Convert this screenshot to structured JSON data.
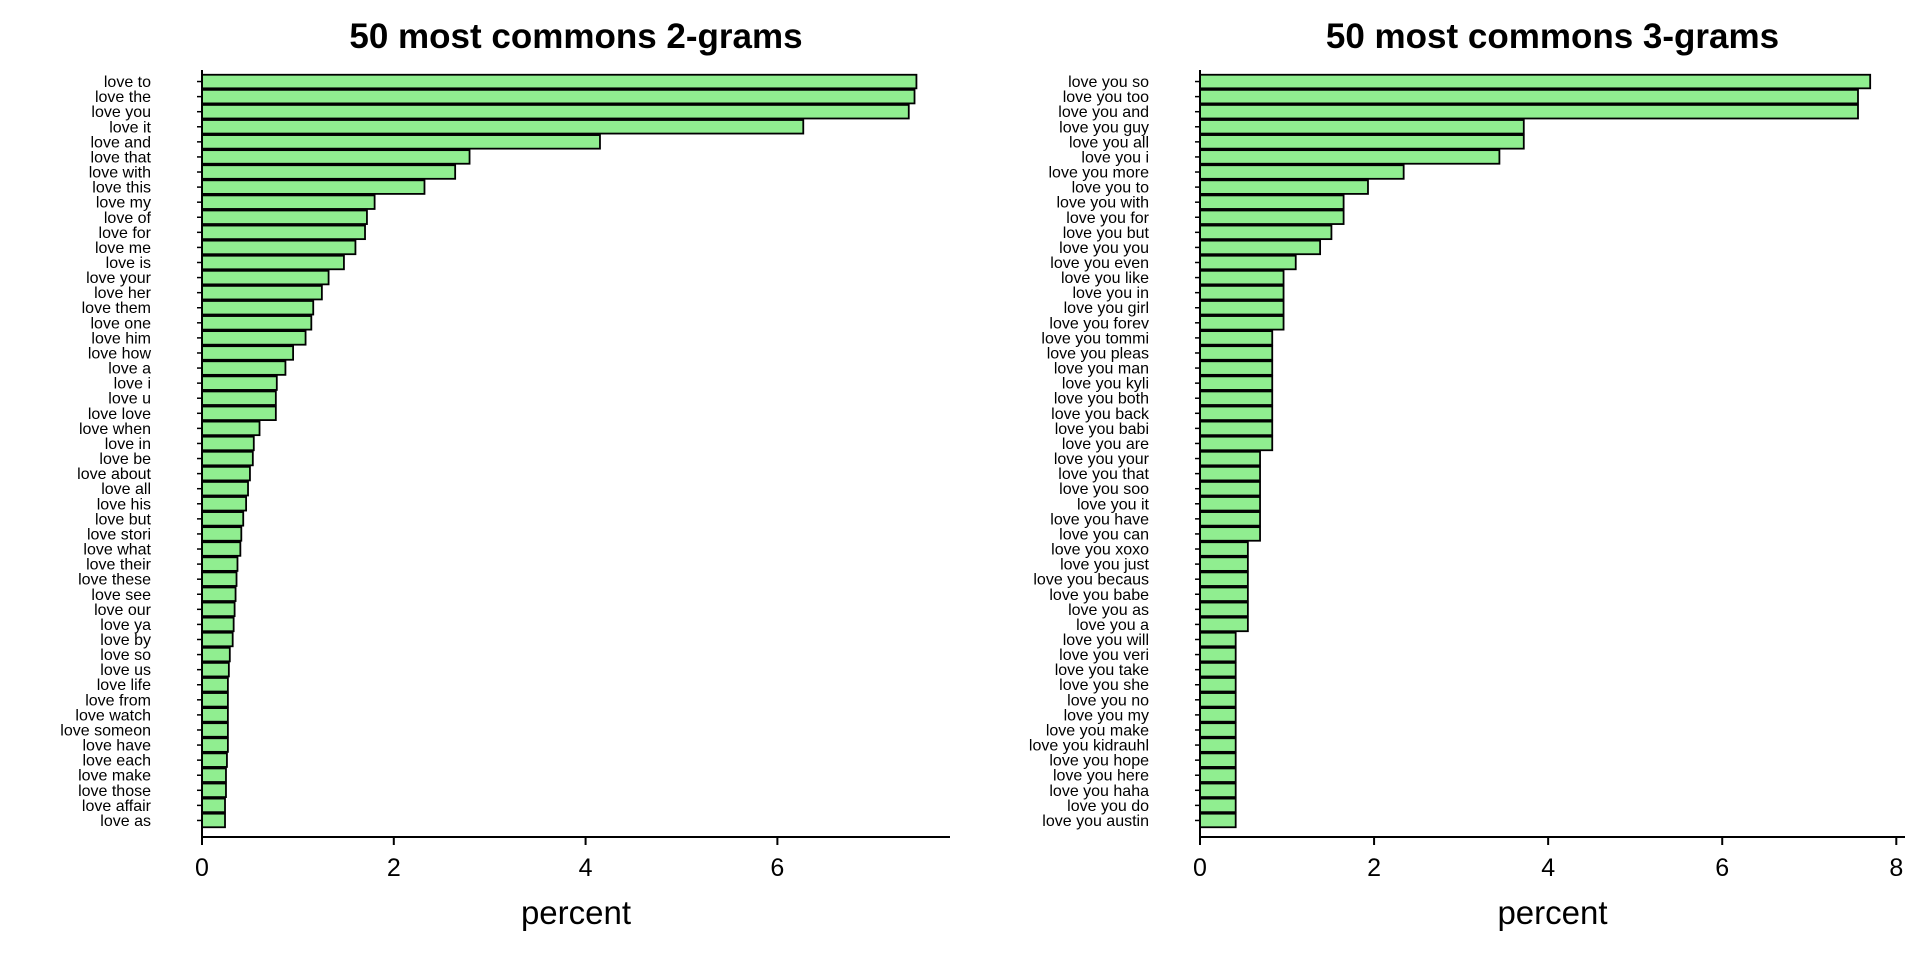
{
  "bar_fill": "#90ee90",
  "bar_stroke": "#000000",
  "chart_data": [
    {
      "type": "bar",
      "orientation": "horizontal",
      "title": "50 most commons 2-grams",
      "xlabel": "percent",
      "ylabel": "",
      "xlim": [
        0,
        7.8
      ],
      "xticks": [
        "0",
        "2",
        "4",
        "6"
      ],
      "grid": false,
      "categories": [
        "love to",
        "love the",
        "love you",
        "love it",
        "love and",
        "love that",
        "love with",
        "love this",
        "love my",
        "love of",
        "love for",
        "love me",
        "love is",
        "love your",
        "love her",
        "love them",
        "love one",
        "love him",
        "love how",
        "love a",
        "love i",
        "love u",
        "love love",
        "love when",
        "love in",
        "love be",
        "love about",
        "love all",
        "love his",
        "love but",
        "love stori",
        "love what",
        "love their",
        "love these",
        "love see",
        "love our",
        "love ya",
        "love by",
        "love so",
        "love us",
        "love life",
        "love from",
        "love watch",
        "love someon",
        "love have",
        "love each",
        "love make",
        "love those",
        "love affair",
        "love as"
      ],
      "values": [
        7.45,
        7.43,
        7.37,
        6.27,
        4.15,
        2.79,
        2.64,
        2.32,
        1.8,
        1.72,
        1.7,
        1.6,
        1.48,
        1.32,
        1.25,
        1.16,
        1.14,
        1.08,
        0.95,
        0.87,
        0.78,
        0.77,
        0.77,
        0.6,
        0.54,
        0.53,
        0.5,
        0.48,
        0.46,
        0.43,
        0.41,
        0.4,
        0.37,
        0.36,
        0.35,
        0.34,
        0.33,
        0.32,
        0.29,
        0.28,
        0.27,
        0.27,
        0.27,
        0.27,
        0.27,
        0.26,
        0.25,
        0.25,
        0.24,
        0.24
      ]
    },
    {
      "type": "bar",
      "orientation": "horizontal",
      "title": "50 most commons 3-grams",
      "xlabel": "percent",
      "ylabel": "",
      "xlim": [
        0,
        8.1
      ],
      "xticks": [
        "0",
        "2",
        "4",
        "6",
        "8"
      ],
      "grid": false,
      "categories": [
        "love you so",
        "love you too",
        "love you and",
        "love you guy",
        "love you all",
        "love you i",
        "love you more",
        "love you to",
        "love you with",
        "love you for",
        "love you but",
        "love you you",
        "love you even",
        "love you like",
        "love you in",
        "love you girl",
        "love you forev",
        "love you tommi",
        "love you pleas",
        "love you man",
        "love you kyli",
        "love you both",
        "love you back",
        "love you babi",
        "love you are",
        "love you your",
        "love you that",
        "love you soo",
        "love you it",
        "love you have",
        "love you can",
        "love you xoxo",
        "love you just",
        "love you becaus",
        "love you babe",
        "love you as",
        "love you a",
        "love you will",
        "love you veri",
        "love you take",
        "love you she",
        "love you no",
        "love you my",
        "love you make",
        "love you kidrauhl",
        "love you hope",
        "love you here",
        "love you haha",
        "love you do",
        "love you austin"
      ],
      "values": [
        7.7,
        7.56,
        7.56,
        3.72,
        3.72,
        3.44,
        2.34,
        1.93,
        1.65,
        1.65,
        1.51,
        1.38,
        1.1,
        0.96,
        0.96,
        0.96,
        0.96,
        0.83,
        0.83,
        0.83,
        0.83,
        0.83,
        0.83,
        0.83,
        0.83,
        0.69,
        0.69,
        0.69,
        0.69,
        0.69,
        0.69,
        0.55,
        0.55,
        0.55,
        0.55,
        0.55,
        0.55,
        0.41,
        0.41,
        0.41,
        0.41,
        0.41,
        0.41,
        0.41,
        0.41,
        0.41,
        0.41,
        0.41,
        0.41,
        0.41
      ]
    }
  ]
}
